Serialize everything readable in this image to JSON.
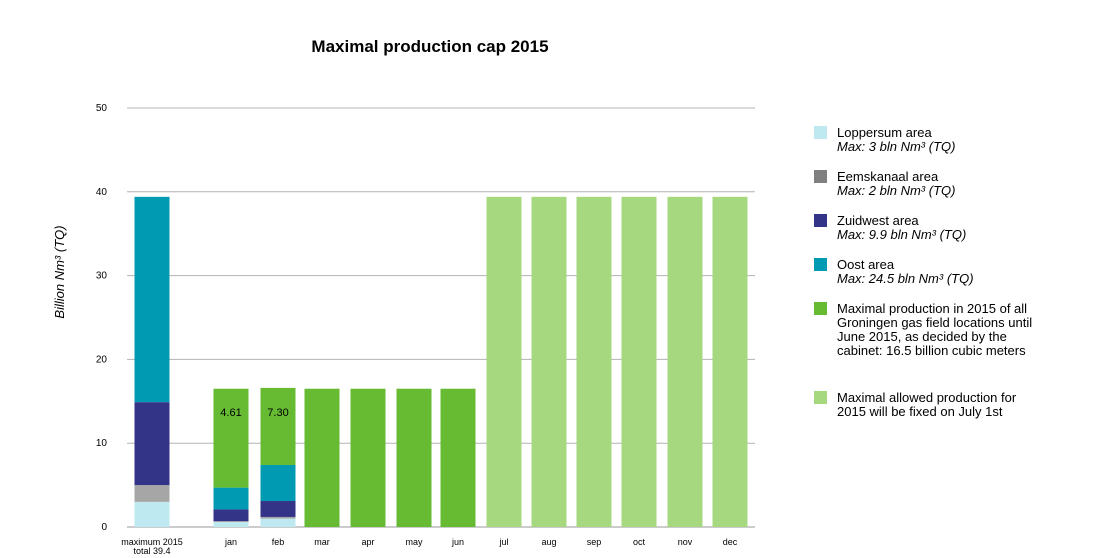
{
  "chart_data": {
    "type": "bar",
    "title": "Maximal production cap 2015",
    "ylabel": "Billion Nm³ (TQ)",
    "xlabel": "",
    "ylim": [
      0,
      50
    ],
    "yticks": [
      "0",
      "10",
      "20",
      "30",
      "40",
      "50"
    ],
    "ytick_values": [
      0,
      10,
      20,
      30,
      40,
      50
    ],
    "grid": true,
    "legend_position": "right",
    "categories": [
      "maximum 2015 total 39.4",
      "jan",
      "feb",
      "mar",
      "apr",
      "may",
      "jun",
      "jul",
      "aug",
      "sep",
      "oct",
      "nov",
      "dec"
    ],
    "category_lines": [
      [
        "maximum 2015",
        "total 39.4"
      ],
      [
        "jan"
      ],
      [
        "feb"
      ],
      [
        "mar"
      ],
      [
        "apr"
      ],
      [
        "may"
      ],
      [
        "jun"
      ],
      [
        "jul"
      ],
      [
        "aug"
      ],
      [
        "sep"
      ],
      [
        "oct"
      ],
      [
        "nov"
      ],
      [
        "dec"
      ]
    ],
    "series": [
      {
        "name": "Loppersum area",
        "color": "#bfe9f0",
        "values": [
          3.0,
          0.6,
          1.0,
          0,
          0,
          0,
          0,
          0,
          0,
          0,
          0,
          0,
          0
        ]
      },
      {
        "name": "Eemskanaal area",
        "color": "#a6a6a6",
        "values": [
          2.0,
          0.1,
          0.2,
          0,
          0,
          0,
          0,
          0,
          0,
          0,
          0,
          0,
          0
        ]
      },
      {
        "name": "Zuidwest area",
        "color": "#333388",
        "values": [
          9.9,
          1.4,
          1.9,
          0,
          0,
          0,
          0,
          0,
          0,
          0,
          0,
          0,
          0
        ]
      },
      {
        "name": "Oost area",
        "color": "#009bb3",
        "values": [
          24.5,
          2.6,
          4.3,
          0,
          0,
          0,
          0,
          0,
          0,
          0,
          0,
          0,
          0
        ]
      },
      {
        "name": "Maximal production in 2015 of all Groningen gas field locations until June 2015, as decided by the cabinet: 16.5 billion cubic meters",
        "color": "#66bb33",
        "values": [
          0,
          11.8,
          9.2,
          16.5,
          16.5,
          16.5,
          16.5,
          0,
          0,
          0,
          0,
          0,
          0
        ]
      },
      {
        "name": "Maximal allowed production for 2015 will be fixed on July 1st",
        "color": "#a6d97f",
        "values": [
          0,
          0,
          0,
          0,
          0,
          0,
          0,
          39.4,
          39.4,
          39.4,
          39.4,
          39.4,
          39.4
        ]
      }
    ],
    "data_labels": [
      {
        "category": "jan",
        "text": "4.61"
      },
      {
        "category": "feb",
        "text": "7.30"
      }
    ],
    "legend": [
      {
        "name": "Loppersum area",
        "sub": "Max: 3 bln Nm³ (TQ)",
        "color": "#bfe9f0"
      },
      {
        "name": "Eemskanaal area",
        "sub": "Max: 2 bln Nm³ (TQ)",
        "color": "#808080"
      },
      {
        "name": "Zuidwest area",
        "sub": "Max: 9.9 bln Nm³ (TQ)",
        "color": "#333388"
      },
      {
        "name": "Oost area",
        "sub": "Max: 24.5 bln Nm³ (TQ)",
        "color": "#009bb3"
      },
      {
        "name": "Maximal production in 2015 of all Groningen gas field locations until June 2015, as decided by the cabinet: 16.5 billion cubic meters",
        "sub": "",
        "color": "#66bb33"
      },
      {
        "name": "Maximal allowed production for 2015 will be fixed on July 1st",
        "sub": "",
        "color": "#a6d97f"
      }
    ]
  }
}
